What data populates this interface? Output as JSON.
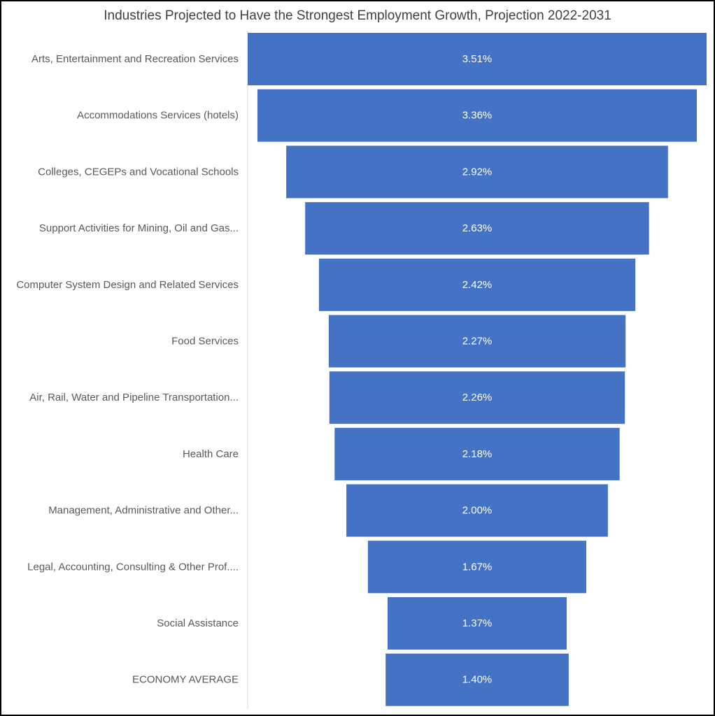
{
  "chart_data": {
    "type": "bar",
    "subtype": "funnel",
    "title": "Industries Projected to Have the Strongest Employment Growth, Projection 2022-2031",
    "categories": [
      "Arts, Entertainment and Recreation Services",
      "Accommodations Services (hotels)",
      "Colleges, CEGEPs and Vocational Schools",
      "Support Activities for Mining, Oil and Gas...",
      "Computer System Design and Related Services",
      "Food Services",
      "Air, Rail, Water and Pipeline Transportation...",
      "Health Care",
      "Management, Administrative and Other...",
      "Legal, Accounting, Consulting & Other Prof....",
      "Social Assistance",
      "ECONOMY AVERAGE"
    ],
    "values": [
      3.51,
      3.36,
      2.92,
      2.63,
      2.42,
      2.27,
      2.26,
      2.18,
      2.0,
      1.67,
      1.37,
      1.4
    ],
    "value_labels": [
      "3.51%",
      "3.36%",
      "2.92%",
      "2.63%",
      "2.42%",
      "2.27%",
      "2.26%",
      "2.18%",
      "2.00%",
      "1.67%",
      "1.37%",
      "1.40%"
    ],
    "bar_color": "#4472C4",
    "xlabel": "",
    "ylabel": "",
    "grid": false,
    "legend": "none"
  }
}
